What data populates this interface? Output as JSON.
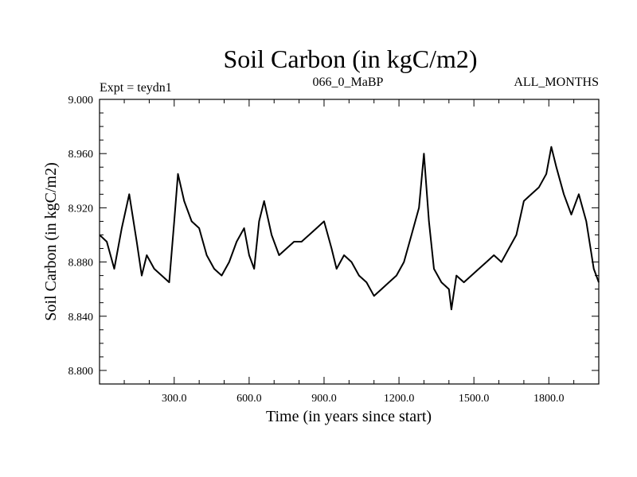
{
  "chart_data": {
    "type": "line",
    "title": "Soil Carbon (in kgC/m2)",
    "subtitle_left": "Expt = teydn1",
    "subtitle_center": "066_0_MaBP",
    "subtitle_right": "ALL_MONTHS",
    "xlabel": "Time (in years since start)",
    "ylabel": "Soil Carbon (in kgC/m2)",
    "xlim": [
      1,
      2000
    ],
    "ylim": [
      8.79,
      9.0
    ],
    "x_ticks": [
      300,
      600,
      900,
      1200,
      1500,
      1800
    ],
    "x_tick_labels": [
      "300.0",
      "600.0",
      "900.0",
      "1200.0",
      "1500.0",
      "1800.0"
    ],
    "y_ticks": [
      8.8,
      8.84,
      8.88,
      8.92,
      8.96,
      9.0
    ],
    "y_tick_labels": [
      "8.800",
      "8.840",
      "8.880",
      "8.920",
      "8.960",
      "9.000"
    ],
    "grid": false,
    "series": [
      {
        "name": "Soil Carbon",
        "x": [
          1,
          30,
          60,
          90,
          120,
          150,
          170,
          190,
          220,
          250,
          280,
          300,
          315,
          340,
          370,
          400,
          430,
          460,
          490,
          520,
          550,
          580,
          600,
          620,
          640,
          660,
          690,
          720,
          750,
          780,
          810,
          840,
          870,
          900,
          930,
          950,
          980,
          1010,
          1040,
          1070,
          1100,
          1130,
          1160,
          1190,
          1220,
          1250,
          1280,
          1300,
          1320,
          1340,
          1370,
          1400,
          1410,
          1430,
          1460,
          1490,
          1520,
          1550,
          1580,
          1610,
          1640,
          1670,
          1700,
          1730,
          1760,
          1790,
          1810,
          1830,
          1860,
          1890,
          1920,
          1950,
          1980,
          2000
        ],
        "values": [
          8.9,
          8.895,
          8.875,
          8.905,
          8.93,
          8.895,
          8.87,
          8.885,
          8.875,
          8.87,
          8.865,
          8.91,
          8.945,
          8.925,
          8.91,
          8.905,
          8.885,
          8.875,
          8.87,
          8.88,
          8.895,
          8.905,
          8.885,
          8.875,
          8.91,
          8.925,
          8.9,
          8.885,
          8.89,
          8.895,
          8.895,
          8.9,
          8.905,
          8.91,
          8.89,
          8.875,
          8.885,
          8.88,
          8.87,
          8.865,
          8.855,
          8.86,
          8.865,
          8.87,
          8.88,
          8.9,
          8.92,
          8.96,
          8.91,
          8.875,
          8.865,
          8.86,
          8.845,
          8.87,
          8.865,
          8.87,
          8.875,
          8.88,
          8.885,
          8.88,
          8.89,
          8.9,
          8.925,
          8.93,
          8.935,
          8.945,
          8.965,
          8.95,
          8.93,
          8.915,
          8.93,
          8.91,
          8.875,
          8.865
        ]
      }
    ]
  }
}
